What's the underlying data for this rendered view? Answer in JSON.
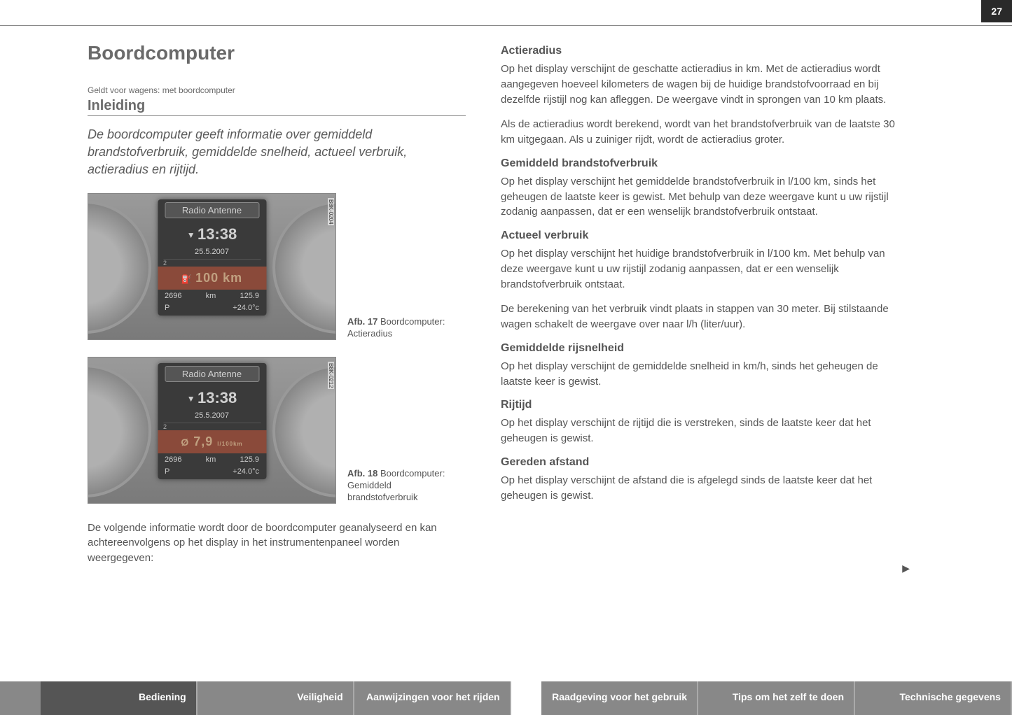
{
  "page_number": "27",
  "title": "Boordcomputer",
  "applies_to": "Geldt voor wagens: met boordcomputer",
  "section_heading": "Inleiding",
  "intro": "De boordcomputer geeft informatie over gemiddeld brandstofverbruik, gemiddelde snelheid, actueel verbruik, actieradius en rijtijd.",
  "figure1": {
    "side_code": "B8K-0204",
    "header": "Radio Antenne",
    "time": "13:38",
    "date": "25.5.2007",
    "mode_indicator": "2",
    "highlight": "100 km",
    "odometer": "2696",
    "odometer_unit": "km",
    "trip": "125.9",
    "gear": "P",
    "temp": "+24.0°c",
    "caption_label": "Afb. 17",
    "caption_text": "Boordcomputer: Actieradius"
  },
  "figure2": {
    "side_code": "B8K-0212",
    "header": "Radio Antenne",
    "time": "13:38",
    "date": "25.5.2007",
    "mode_indicator": "2",
    "highlight_symbol": "Ø",
    "highlight": "7,9",
    "highlight_unit": "l/100km",
    "odometer": "2696",
    "odometer_unit": "km",
    "trip": "125.9",
    "gear": "P",
    "temp": "+24.0°c",
    "caption_label": "Afb. 18",
    "caption_text": "Boordcomputer: Gemiddeld brandstofverbruik"
  },
  "left_body": "De volgende informatie wordt door de boordcomputer geanalyseerd en kan achtereenvolgens op het display in het instrumentenpaneel worden weergegeven:",
  "sections": [
    {
      "heading": "Actieradius",
      "paragraphs": [
        "Op het display verschijnt de geschatte actieradius in km. Met de actieradius wordt aangegeven hoeveel kilometers de wagen bij de huidige brandstofvoorraad en bij dezelfde rijstijl nog kan afleggen. De weergave vindt in sprongen van 10 km plaats.",
        "Als de actieradius wordt berekend, wordt van het brandstofverbruik van de laatste 30 km uitgegaan. Als u zuiniger rijdt, wordt de actieradius groter."
      ]
    },
    {
      "heading": "Gemiddeld brandstofverbruik",
      "paragraphs": [
        "Op het display verschijnt het gemiddelde brandstofverbruik in l/100 km, sinds het geheugen de laatste keer is gewist. Met behulp van deze weergave kunt u uw rijstijl zodanig aanpassen, dat er een wenselijk brandstofverbruik ontstaat."
      ]
    },
    {
      "heading": "Actueel verbruik",
      "paragraphs": [
        "Op het display verschijnt het huidige brandstofverbruik in l/100 km. Met behulp van deze weergave kunt u uw rijstijl zodanig aanpassen, dat er een wenselijk brandstofverbruik ontstaat.",
        "De berekening van het verbruik vindt plaats in stappen van 30 meter. Bij stilstaande wagen schakelt de weergave over naar l/h (liter/uur)."
      ]
    },
    {
      "heading": "Gemiddelde rijsnelheid",
      "paragraphs": [
        "Op het display verschijnt de gemiddelde snelheid in km/h, sinds het geheugen de laatste keer is gewist."
      ]
    },
    {
      "heading": "Rijtijd",
      "paragraphs": [
        "Op het display verschijnt de rijtijd die is verstreken, sinds de laatste keer dat het geheugen is gewist."
      ]
    },
    {
      "heading": "Gereden afstand",
      "paragraphs": [
        "Op het display verschijnt de afstand die is afgelegd sinds de laatste keer dat het geheugen is gewist."
      ]
    }
  ],
  "tabs": [
    {
      "label": "Bediening",
      "active": true
    },
    {
      "label": "Veiligheid",
      "active": false
    },
    {
      "label": "Aanwijzingen voor het rijden",
      "active": false
    },
    {
      "label": "Raadgeving voor het gebruik",
      "active": false
    },
    {
      "label": "Tips om het zelf te doen",
      "active": false
    },
    {
      "label": "Technische gegevens",
      "active": false
    }
  ]
}
